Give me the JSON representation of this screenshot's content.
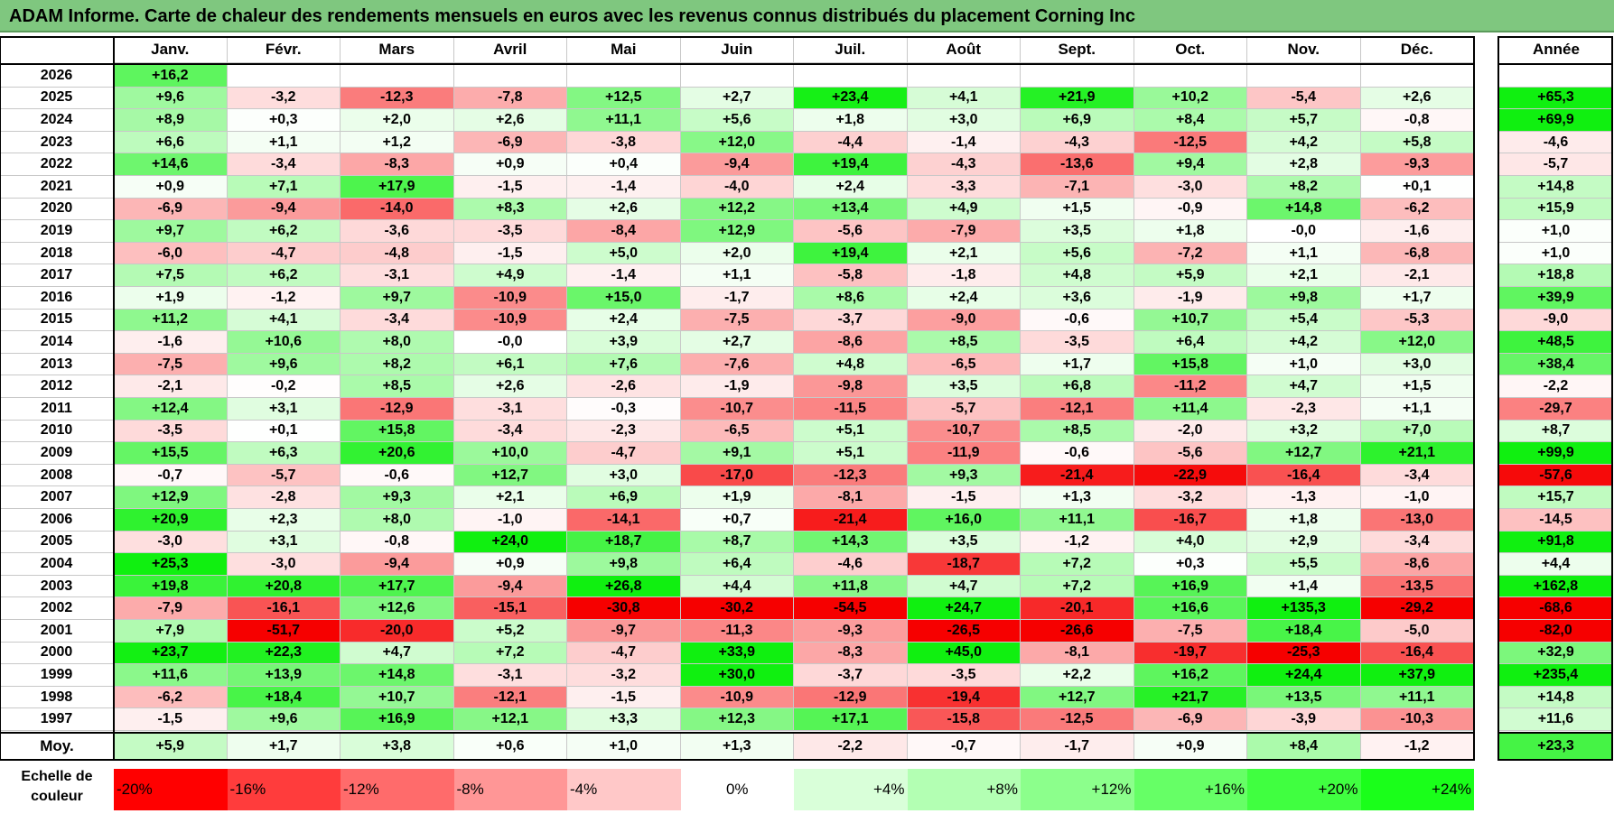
{
  "title": "ADAM Informe. Carte de chaleur des rendements mensuels en euros avec les revenus connus distribués du placement Corning Inc",
  "chart_data": {
    "type": "heatmap",
    "columns": [
      "Janv.",
      "Févr.",
      "Mars",
      "Avril",
      "Mai",
      "Juin",
      "Juil.",
      "Août",
      "Sept.",
      "Oct.",
      "Nov.",
      "Déc."
    ],
    "year_column_label": "Année",
    "rows": [
      {
        "year": "2026",
        "months": [
          "+16,2",
          "",
          "",
          "",
          "",
          "",
          "",
          "",
          "",
          "",
          "",
          ""
        ],
        "annual": ""
      },
      {
        "year": "2025",
        "months": [
          "+9,6",
          "-3,2",
          "-12,3",
          "-7,8",
          "+12,5",
          "+2,7",
          "+23,4",
          "+4,1",
          "+21,9",
          "+10,2",
          "-5,4",
          "+2,6"
        ],
        "annual": "+65,3"
      },
      {
        "year": "2024",
        "months": [
          "+8,9",
          "+0,3",
          "+2,0",
          "+2,6",
          "+11,1",
          "+5,6",
          "+1,8",
          "+3,0",
          "+6,9",
          "+8,4",
          "+5,7",
          "-0,8"
        ],
        "annual": "+69,9"
      },
      {
        "year": "2023",
        "months": [
          "+6,6",
          "+1,1",
          "+1,2",
          "-6,9",
          "-3,8",
          "+12,0",
          "-4,4",
          "-1,4",
          "-4,3",
          "-12,5",
          "+4,2",
          "+5,8"
        ],
        "annual": "-4,6"
      },
      {
        "year": "2022",
        "months": [
          "+14,6",
          "-3,4",
          "-8,3",
          "+0,9",
          "+0,4",
          "-9,4",
          "+19,4",
          "-4,3",
          "-13,6",
          "+9,4",
          "+2,8",
          "-9,3"
        ],
        "annual": "-5,7"
      },
      {
        "year": "2021",
        "months": [
          "+0,9",
          "+7,1",
          "+17,9",
          "-1,5",
          "-1,4",
          "-4,0",
          "+2,4",
          "-3,3",
          "-7,1",
          "-3,0",
          "+8,2",
          "+0,1"
        ],
        "annual": "+14,8"
      },
      {
        "year": "2020",
        "months": [
          "-6,9",
          "-9,4",
          "-14,0",
          "+8,3",
          "+2,6",
          "+12,2",
          "+13,4",
          "+4,9",
          "+1,5",
          "-0,9",
          "+14,8",
          "-6,2"
        ],
        "annual": "+15,9"
      },
      {
        "year": "2019",
        "months": [
          "+9,7",
          "+6,2",
          "-3,6",
          "-3,5",
          "-8,4",
          "+12,9",
          "-5,6",
          "-7,9",
          "+3,5",
          "+1,8",
          "-0,0",
          "-1,6"
        ],
        "annual": "+1,0"
      },
      {
        "year": "2018",
        "months": [
          "-6,0",
          "-4,7",
          "-4,8",
          "-1,5",
          "+5,0",
          "+2,0",
          "+19,4",
          "+2,1",
          "+5,6",
          "-7,2",
          "+1,1",
          "-6,8"
        ],
        "annual": "+1,0"
      },
      {
        "year": "2017",
        "months": [
          "+7,5",
          "+6,2",
          "-3,1",
          "+4,9",
          "-1,4",
          "+1,1",
          "-5,8",
          "-1,8",
          "+4,8",
          "+5,9",
          "+2,1",
          "-2,1"
        ],
        "annual": "+18,8"
      },
      {
        "year": "2016",
        "months": [
          "+1,9",
          "-1,2",
          "+9,7",
          "-10,9",
          "+15,0",
          "-1,7",
          "+8,6",
          "+2,4",
          "+3,6",
          "-1,9",
          "+9,8",
          "+1,7"
        ],
        "annual": "+39,9"
      },
      {
        "year": "2015",
        "months": [
          "+11,2",
          "+4,1",
          "-3,4",
          "-10,9",
          "+2,4",
          "-7,5",
          "-3,7",
          "-9,0",
          "-0,6",
          "+10,7",
          "+5,4",
          "-5,3"
        ],
        "annual": "-9,0"
      },
      {
        "year": "2014",
        "months": [
          "-1,6",
          "+10,6",
          "+8,0",
          "-0,0",
          "+3,9",
          "+2,7",
          "-8,6",
          "+8,5",
          "-3,5",
          "+6,4",
          "+4,2",
          "+12,0"
        ],
        "annual": "+48,5"
      },
      {
        "year": "2013",
        "months": [
          "-7,5",
          "+9,6",
          "+8,2",
          "+6,1",
          "+7,6",
          "-7,6",
          "+4,8",
          "-6,5",
          "+1,7",
          "+15,8",
          "+1,0",
          "+3,0"
        ],
        "annual": "+38,4"
      },
      {
        "year": "2012",
        "months": [
          "-2,1",
          "-0,2",
          "+8,5",
          "+2,6",
          "-2,6",
          "-1,9",
          "-9,8",
          "+3,5",
          "+6,8",
          "-11,2",
          "+4,7",
          "+1,5"
        ],
        "annual": "-2,2"
      },
      {
        "year": "2011",
        "months": [
          "+12,4",
          "+3,1",
          "-12,9",
          "-3,1",
          "-0,3",
          "-10,7",
          "-11,5",
          "-5,7",
          "-12,1",
          "+11,4",
          "-2,3",
          "+1,1"
        ],
        "annual": "-29,7"
      },
      {
        "year": "2010",
        "months": [
          "-3,5",
          "+0,1",
          "+15,8",
          "-3,4",
          "-2,3",
          "-6,5",
          "+5,1",
          "-10,7",
          "+8,5",
          "-2,0",
          "+3,2",
          "+7,0"
        ],
        "annual": "+8,7"
      },
      {
        "year": "2009",
        "months": [
          "+15,5",
          "+6,3",
          "+20,6",
          "+10,0",
          "-4,7",
          "+9,1",
          "+5,1",
          "-11,9",
          "-0,6",
          "-5,6",
          "+12,7",
          "+21,1"
        ],
        "annual": "+99,9"
      },
      {
        "year": "2008",
        "months": [
          "-0,7",
          "-5,7",
          "-0,6",
          "+12,7",
          "+3,0",
          "-17,0",
          "-12,3",
          "+9,3",
          "-21,4",
          "-22,9",
          "-16,4",
          "-3,4"
        ],
        "annual": "-57,6"
      },
      {
        "year": "2007",
        "months": [
          "+12,9",
          "-2,8",
          "+9,3",
          "+2,1",
          "+6,9",
          "+1,9",
          "-8,1",
          "-1,5",
          "+1,3",
          "-3,2",
          "-1,3",
          "-1,0"
        ],
        "annual": "+15,7"
      },
      {
        "year": "2006",
        "months": [
          "+20,9",
          "+2,3",
          "+8,0",
          "-1,0",
          "-14,1",
          "+0,7",
          "-21,4",
          "+16,0",
          "+11,1",
          "-16,7",
          "+1,8",
          "-13,0"
        ],
        "annual": "-14,5"
      },
      {
        "year": "2005",
        "months": [
          "-3,0",
          "+3,1",
          "-0,8",
          "+24,0",
          "+18,7",
          "+8,7",
          "+14,3",
          "+3,5",
          "-1,2",
          "+4,0",
          "+2,9",
          "-3,4"
        ],
        "annual": "+91,8"
      },
      {
        "year": "2004",
        "months": [
          "+25,3",
          "-3,0",
          "-9,4",
          "+0,9",
          "+9,8",
          "+6,4",
          "-4,6",
          "-18,7",
          "+7,2",
          "+0,3",
          "+5,5",
          "-8,6"
        ],
        "annual": "+4,4"
      },
      {
        "year": "2003",
        "months": [
          "+19,8",
          "+20,8",
          "+17,7",
          "-9,4",
          "+26,8",
          "+4,4",
          "+11,8",
          "+4,7",
          "+7,2",
          "+16,9",
          "+1,4",
          "-13,5"
        ],
        "annual": "+162,8"
      },
      {
        "year": "2002",
        "months": [
          "-7,9",
          "-16,1",
          "+12,6",
          "-15,1",
          "-30,8",
          "-30,2",
          "-54,5",
          "+24,7",
          "-20,1",
          "+16,6",
          "+135,3",
          "-29,2"
        ],
        "annual": "-68,6"
      },
      {
        "year": "2001",
        "months": [
          "+7,9",
          "-51,7",
          "-20,0",
          "+5,2",
          "-9,7",
          "-11,3",
          "-9,3",
          "-26,5",
          "-26,6",
          "-7,5",
          "+18,4",
          "-5,0"
        ],
        "annual": "-82,0"
      },
      {
        "year": "2000",
        "months": [
          "+23,7",
          "+22,3",
          "+4,7",
          "+7,2",
          "-4,7",
          "+33,9",
          "-8,3",
          "+45,0",
          "-8,1",
          "-19,7",
          "-25,3",
          "-16,4"
        ],
        "annual": "+32,9"
      },
      {
        "year": "1999",
        "months": [
          "+11,6",
          "+13,9",
          "+14,8",
          "-3,1",
          "-3,2",
          "+30,0",
          "-3,7",
          "-3,5",
          "+2,2",
          "+16,2",
          "+24,4",
          "+37,9"
        ],
        "annual": "+235,4"
      },
      {
        "year": "1998",
        "months": [
          "-6,2",
          "+18,4",
          "+10,7",
          "-12,1",
          "-1,5",
          "-10,9",
          "-12,9",
          "-19,4",
          "+12,7",
          "+21,7",
          "+13,5",
          "+11,1"
        ],
        "annual": "+14,8"
      },
      {
        "year": "1997",
        "months": [
          "-1,5",
          "+9,6",
          "+16,9",
          "+12,1",
          "+3,3",
          "+12,3",
          "+17,1",
          "-15,8",
          "-12,5",
          "-6,9",
          "-3,9",
          "-10,3"
        ],
        "annual": "+11,6"
      }
    ],
    "average": {
      "label": "Moy.",
      "months": [
        "+5,9",
        "+1,7",
        "+3,8",
        "+0,6",
        "+1,0",
        "+1,3",
        "-2,2",
        "-0,7",
        "-1,7",
        "+0,9",
        "+8,4",
        "-1,2"
      ],
      "annual": "+23,3"
    },
    "color_scale": {
      "label": "Echelle de couleur",
      "stops": [
        "-20%",
        "-16%",
        "-12%",
        "-8%",
        "-4%",
        "0%",
        "+4%",
        "+8%",
        "+12%",
        "+16%",
        "+20%",
        "+24%"
      ],
      "colors": [
        "#ff0000",
        "#ff3c3c",
        "#ff6b6b",
        "#ff9696",
        "#ffc8c8",
        "#ffffff",
        "#d9ffd9",
        "#b3ffb3",
        "#8cff8c",
        "#66ff66",
        "#40ff40",
        "#1aff1a"
      ]
    }
  }
}
